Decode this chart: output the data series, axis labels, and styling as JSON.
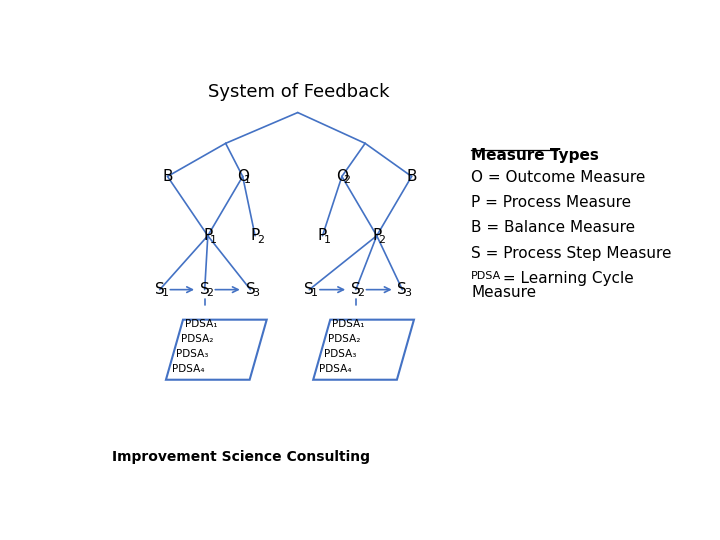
{
  "title": "System of Feedback",
  "bg_color": "#ffffff",
  "line_color": "#4472c4",
  "text_color": "#000000",
  "legend_title": "Measure Types",
  "legend_items": [
    "O = Outcome Measure",
    "P = Process Measure",
    "B = Balance Measure",
    "S = Process Step Measure"
  ],
  "legend_pdsa_prefix": "PDSA",
  "legend_pdsa_suffix": " = Learning Cycle",
  "legend_pdsa_line2": "Measure",
  "footer": "Improvement Science Consulting",
  "pdsa_labels": [
    "PDSA₄",
    "PDSA₃",
    "PDSA₂",
    "PDSA₁"
  ]
}
